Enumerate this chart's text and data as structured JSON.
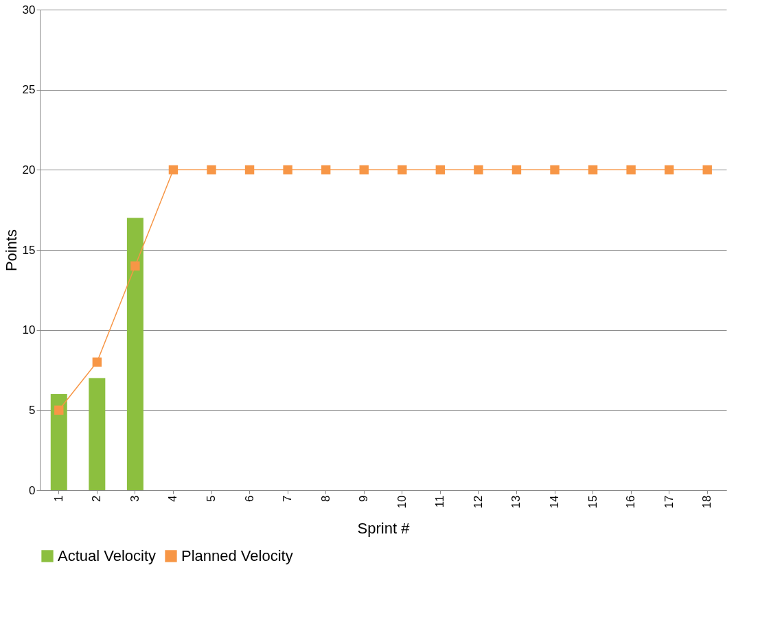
{
  "chart_data": {
    "type": "bar",
    "xlabel": "Sprint #",
    "ylabel": "Points",
    "categories": [
      "1",
      "2",
      "3",
      "4",
      "5",
      "6",
      "7",
      "8",
      "9",
      "10",
      "11",
      "12",
      "13",
      "14",
      "15",
      "16",
      "17",
      "18"
    ],
    "series": [
      {
        "name": "Actual Velocity",
        "color": "#8cbf3f",
        "values": [
          6,
          7,
          17,
          null,
          null,
          null,
          null,
          null,
          null,
          null,
          null,
          null,
          null,
          null,
          null,
          null,
          null,
          null
        ]
      },
      {
        "name": "Planned Velocity",
        "type": "line",
        "color": "#f79646",
        "marker": "square",
        "values": [
          5,
          8,
          14,
          20,
          20,
          20,
          20,
          20,
          20,
          20,
          20,
          20,
          20,
          20,
          20,
          20,
          20,
          20
        ]
      }
    ],
    "ylim": [
      0,
      30
    ],
    "yticks": [
      0,
      5,
      10,
      15,
      20,
      25,
      30
    ],
    "grid": "y",
    "legend": "bottom"
  }
}
